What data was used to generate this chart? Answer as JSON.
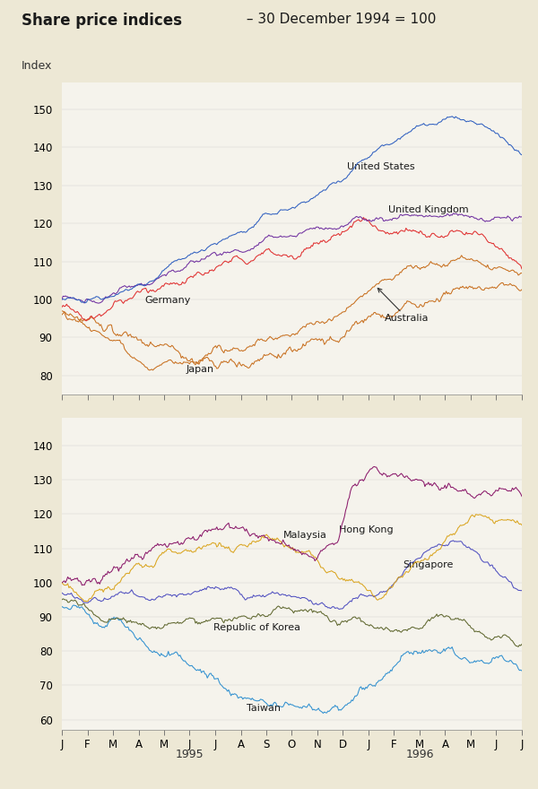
{
  "title_bold": "Share price indices",
  "title_rest": " – 30 December 1994 = 100",
  "ylabel": "Index",
  "bg_color": "#ede8d5",
  "plot_bg_color": "#f5f3ec",
  "n_points": 390,
  "month_labels": [
    "J",
    "F",
    "M",
    "A",
    "M",
    "J",
    "J",
    "A",
    "S",
    "O",
    "N",
    "D",
    "J",
    "F",
    "M",
    "A",
    "M",
    "J",
    "J"
  ],
  "top": {
    "ylim": [
      75,
      157
    ],
    "yticks": [
      80,
      90,
      100,
      110,
      120,
      130,
      140,
      150
    ]
  },
  "bottom": {
    "ylim": [
      57,
      148
    ],
    "yticks": [
      60,
      70,
      80,
      90,
      100,
      110,
      120,
      130,
      140
    ]
  },
  "colors": {
    "us": "#3060c0",
    "uk": "#7030A0",
    "germany": "#e03030",
    "australia": "#c87020",
    "japan": "#c87020",
    "hk": "#8B1A6B",
    "malaysia": "#DAA520",
    "singapore": "#5050c0",
    "korea": "#606830",
    "taiwan": "#3090d0"
  }
}
